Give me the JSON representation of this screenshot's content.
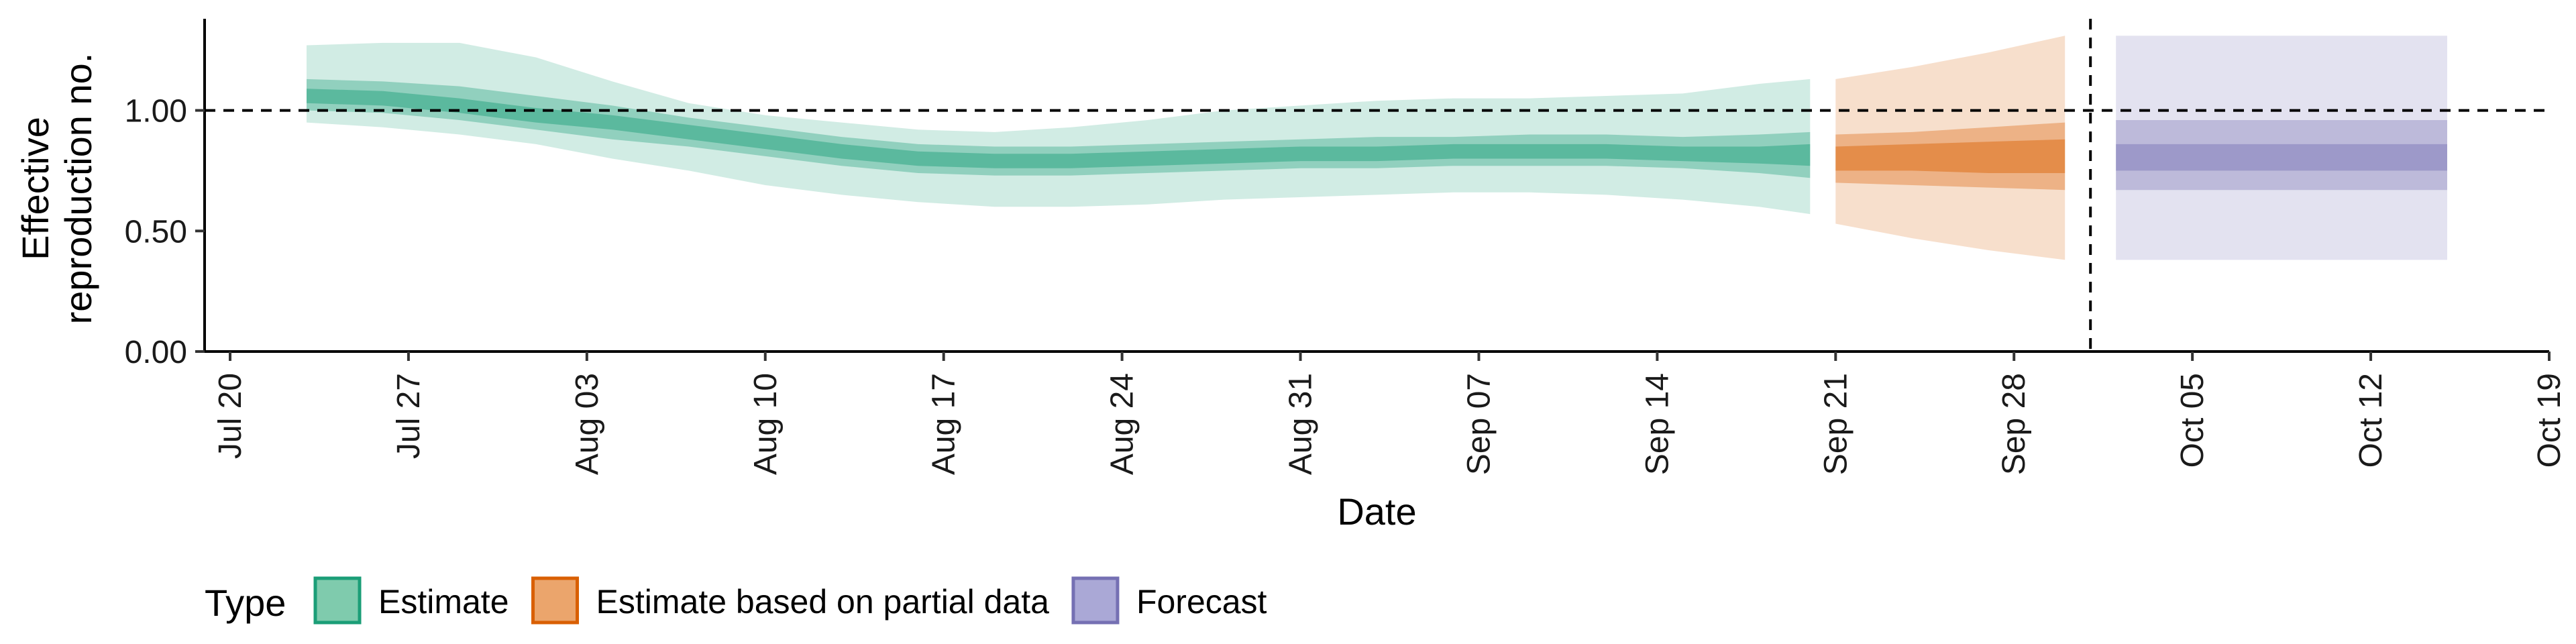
{
  "chart_data": {
    "type": "area",
    "xlabel": "Date",
    "ylabel_lines": [
      "Effective",
      "reproduction no."
    ],
    "ylim": [
      0,
      1.38
    ],
    "x_range": [
      "2020-07-19",
      "2020-10-19"
    ],
    "y_ticks": [
      {
        "value": 0.0,
        "label": "0.00"
      },
      {
        "value": 0.5,
        "label": "0.50"
      },
      {
        "value": 1.0,
        "label": "1.00"
      }
    ],
    "x_ticks": [
      {
        "date": "2020-07-20",
        "label": "Jul 20"
      },
      {
        "date": "2020-07-27",
        "label": "Jul 27"
      },
      {
        "date": "2020-08-03",
        "label": "Aug 03"
      },
      {
        "date": "2020-08-10",
        "label": "Aug 10"
      },
      {
        "date": "2020-08-17",
        "label": "Aug 17"
      },
      {
        "date": "2020-08-24",
        "label": "Aug 24"
      },
      {
        "date": "2020-08-31",
        "label": "Aug 31"
      },
      {
        "date": "2020-09-07",
        "label": "Sep 07"
      },
      {
        "date": "2020-09-14",
        "label": "Sep 14"
      },
      {
        "date": "2020-09-21",
        "label": "Sep 21"
      },
      {
        "date": "2020-09-28",
        "label": "Sep 28"
      },
      {
        "date": "2020-10-05",
        "label": "Oct 05"
      },
      {
        "date": "2020-10-12",
        "label": "Oct 12"
      },
      {
        "date": "2020-10-19",
        "label": "Oct 19"
      }
    ],
    "reference_lines": {
      "horizontal": 1.0,
      "vertical_date": "2020-10-01"
    },
    "grid": false,
    "legend": {
      "title": "Type",
      "position": "bottom-left",
      "entries": [
        {
          "name": "Estimate",
          "fill": "#7fcbad",
          "stroke": "#1b9e77"
        },
        {
          "name": "Estimate based on partial data",
          "fill": "#eba56c",
          "stroke": "#d95f02"
        },
        {
          "name": "Forecast",
          "fill": "#aaa8d6",
          "stroke": "#7570b3"
        }
      ]
    },
    "series": [
      {
        "name": "Estimate",
        "colors": {
          "outer": "#1b9e77",
          "mid": "#1b9e77",
          "inner": "#1b9e77"
        },
        "points": [
          {
            "date": "2020-07-23",
            "median": 1.06,
            "lo90": 0.95,
            "hi90": 1.27,
            "lo50": 1.0,
            "hi50": 1.13,
            "lo20": 1.03,
            "hi20": 1.09
          },
          {
            "date": "2020-07-26",
            "median": 1.05,
            "lo90": 0.93,
            "hi90": 1.28,
            "lo50": 0.99,
            "hi50": 1.12,
            "lo20": 1.02,
            "hi20": 1.08
          },
          {
            "date": "2020-07-29",
            "median": 1.02,
            "lo90": 0.9,
            "hi90": 1.28,
            "lo50": 0.96,
            "hi50": 1.1,
            "lo20": 0.99,
            "hi20": 1.05
          },
          {
            "date": "2020-08-01",
            "median": 0.98,
            "lo90": 0.86,
            "hi90": 1.22,
            "lo50": 0.92,
            "hi50": 1.06,
            "lo20": 0.95,
            "hi20": 1.01
          },
          {
            "date": "2020-08-04",
            "median": 0.95,
            "lo90": 0.8,
            "hi90": 1.12,
            "lo50": 0.88,
            "hi50": 1.02,
            "lo20": 0.92,
            "hi20": 0.98
          },
          {
            "date": "2020-08-07",
            "median": 0.91,
            "lo90": 0.75,
            "hi90": 1.03,
            "lo50": 0.85,
            "hi50": 0.97,
            "lo20": 0.88,
            "hi20": 0.94
          },
          {
            "date": "2020-08-10",
            "median": 0.87,
            "lo90": 0.69,
            "hi90": 0.98,
            "lo50": 0.81,
            "hi50": 0.93,
            "lo20": 0.84,
            "hi20": 0.9
          },
          {
            "date": "2020-08-13",
            "median": 0.83,
            "lo90": 0.65,
            "hi90": 0.95,
            "lo50": 0.77,
            "hi50": 0.89,
            "lo20": 0.8,
            "hi20": 0.86
          },
          {
            "date": "2020-08-16",
            "median": 0.8,
            "lo90": 0.62,
            "hi90": 0.92,
            "lo50": 0.74,
            "hi50": 0.86,
            "lo20": 0.77,
            "hi20": 0.83
          },
          {
            "date": "2020-08-19",
            "median": 0.79,
            "lo90": 0.6,
            "hi90": 0.91,
            "lo50": 0.73,
            "hi50": 0.85,
            "lo20": 0.76,
            "hi20": 0.82
          },
          {
            "date": "2020-08-22",
            "median": 0.79,
            "lo90": 0.6,
            "hi90": 0.93,
            "lo50": 0.73,
            "hi50": 0.85,
            "lo20": 0.76,
            "hi20": 0.82
          },
          {
            "date": "2020-08-25",
            "median": 0.8,
            "lo90": 0.61,
            "hi90": 0.96,
            "lo50": 0.74,
            "hi50": 0.86,
            "lo20": 0.77,
            "hi20": 0.83
          },
          {
            "date": "2020-08-28",
            "median": 0.81,
            "lo90": 0.63,
            "hi90": 1.0,
            "lo50": 0.75,
            "hi50": 0.87,
            "lo20": 0.78,
            "hi20": 0.84
          },
          {
            "date": "2020-08-31",
            "median": 0.82,
            "lo90": 0.64,
            "hi90": 1.02,
            "lo50": 0.76,
            "hi50": 0.88,
            "lo20": 0.79,
            "hi20": 0.85
          },
          {
            "date": "2020-09-03",
            "median": 0.82,
            "lo90": 0.65,
            "hi90": 1.04,
            "lo50": 0.76,
            "hi50": 0.89,
            "lo20": 0.79,
            "hi20": 0.85
          },
          {
            "date": "2020-09-06",
            "median": 0.83,
            "lo90": 0.66,
            "hi90": 1.05,
            "lo50": 0.77,
            "hi50": 0.89,
            "lo20": 0.8,
            "hi20": 0.86
          },
          {
            "date": "2020-09-09",
            "median": 0.83,
            "lo90": 0.66,
            "hi90": 1.05,
            "lo50": 0.77,
            "hi50": 0.9,
            "lo20": 0.8,
            "hi20": 0.86
          },
          {
            "date": "2020-09-12",
            "median": 0.83,
            "lo90": 0.65,
            "hi90": 1.06,
            "lo50": 0.77,
            "hi50": 0.9,
            "lo20": 0.8,
            "hi20": 0.86
          },
          {
            "date": "2020-09-15",
            "median": 0.82,
            "lo90": 0.63,
            "hi90": 1.07,
            "lo50": 0.76,
            "hi50": 0.89,
            "lo20": 0.79,
            "hi20": 0.85
          },
          {
            "date": "2020-09-18",
            "median": 0.81,
            "lo90": 0.6,
            "hi90": 1.11,
            "lo50": 0.74,
            "hi50": 0.9,
            "lo20": 0.78,
            "hi20": 0.85
          },
          {
            "date": "2020-09-20",
            "median": 0.81,
            "lo90": 0.57,
            "hi90": 1.13,
            "lo50": 0.72,
            "hi50": 0.91,
            "lo20": 0.77,
            "hi20": 0.86
          }
        ]
      },
      {
        "name": "Estimate based on partial data",
        "colors": {
          "outer": "#d95f02",
          "mid": "#d95f02",
          "inner": "#d95f02"
        },
        "points": [
          {
            "date": "2020-09-21",
            "median": 0.8,
            "lo90": 0.53,
            "hi90": 1.13,
            "lo50": 0.7,
            "hi50": 0.9,
            "lo20": 0.75,
            "hi20": 0.85
          },
          {
            "date": "2020-09-24",
            "median": 0.8,
            "lo90": 0.47,
            "hi90": 1.18,
            "lo50": 0.69,
            "hi50": 0.91,
            "lo20": 0.75,
            "hi20": 0.86
          },
          {
            "date": "2020-09-27",
            "median": 0.8,
            "lo90": 0.42,
            "hi90": 1.24,
            "lo50": 0.68,
            "hi50": 0.93,
            "lo20": 0.74,
            "hi20": 0.87
          },
          {
            "date": "2020-09-30",
            "median": 0.8,
            "lo90": 0.38,
            "hi90": 1.31,
            "lo50": 0.67,
            "hi50": 0.95,
            "lo20": 0.74,
            "hi20": 0.88
          }
        ]
      },
      {
        "name": "Forecast",
        "colors": {
          "outer": "#7570b3",
          "mid": "#7570b3",
          "inner": "#7570b3"
        },
        "points": [
          {
            "date": "2020-10-02",
            "median": 0.81,
            "lo90": 0.38,
            "hi90": 1.31,
            "lo50": 0.67,
            "hi50": 0.96,
            "lo20": 0.75,
            "hi20": 0.86
          },
          {
            "date": "2020-10-15",
            "median": 0.81,
            "lo90": 0.38,
            "hi90": 1.31,
            "lo50": 0.67,
            "hi50": 0.96,
            "lo20": 0.75,
            "hi20": 0.86
          }
        ]
      }
    ]
  }
}
